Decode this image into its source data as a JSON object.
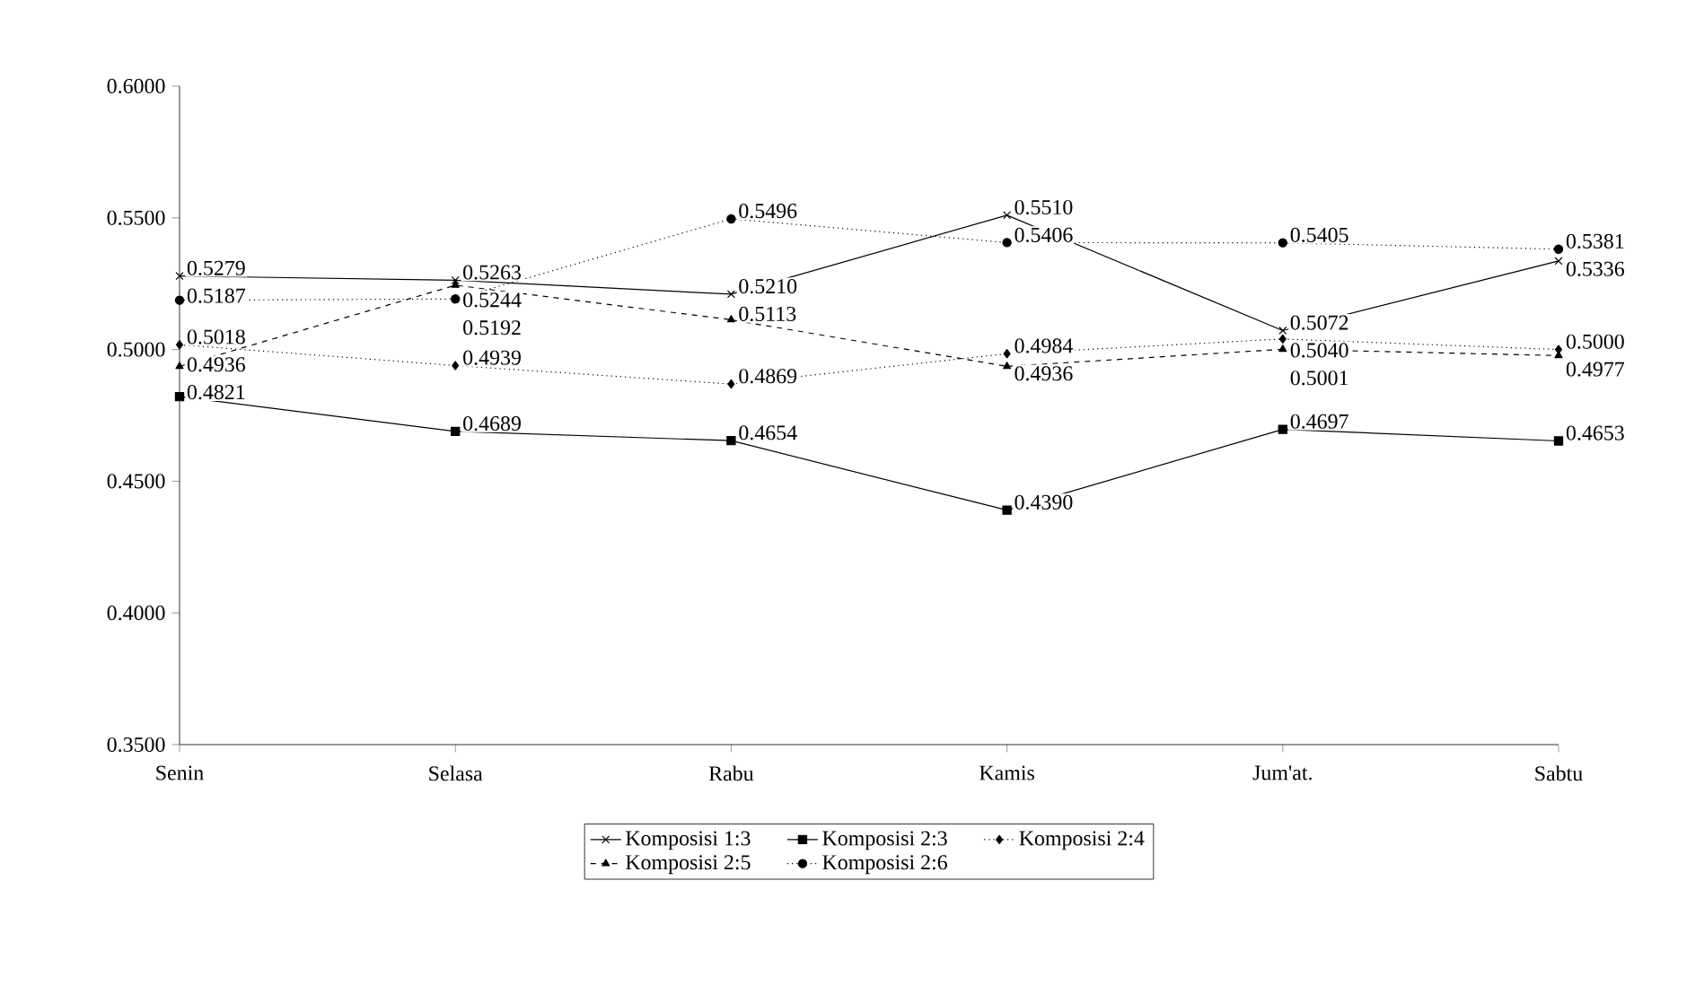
{
  "chart_data": {
    "type": "line",
    "categories": [
      "Senin",
      "Selasa",
      "Rabu",
      "Kamis",
      "Jum'at.",
      "Sabtu"
    ],
    "ylim": [
      0.35,
      0.6
    ],
    "yticks": [
      {
        "value": 0.35,
        "label": "0.3500"
      },
      {
        "value": 0.4,
        "label": "0.4000"
      },
      {
        "value": 0.45,
        "label": "0.4500"
      },
      {
        "value": 0.5,
        "label": "0.5000"
      },
      {
        "value": 0.55,
        "label": "0.5500"
      },
      {
        "value": 0.6,
        "label": "0.6000"
      }
    ],
    "grid": false,
    "legend": "bottom",
    "series": [
      {
        "name": "Komposisi 1:3",
        "color": "#000000",
        "marker": "cross",
        "line_style": "solid",
        "values": [
          0.5279,
          0.5263,
          0.521,
          0.551,
          0.5072,
          0.5336
        ],
        "value_labels": [
          "0.5279",
          "0.5263",
          "0.5210",
          "0.5510",
          "0.5072",
          "0.5336"
        ]
      },
      {
        "name": "Komposisi 2:3",
        "color": "#000000",
        "marker": "square",
        "line_style": "solid",
        "values": [
          0.4821,
          0.4689,
          0.4654,
          0.439,
          0.4697,
          0.4653
        ],
        "value_labels": [
          "0.4821",
          "0.4689",
          "0.4654",
          "0.4390",
          "0.4697",
          "0.4653"
        ]
      },
      {
        "name": "Komposisi 2:4",
        "color": "#000000",
        "marker": "diamond",
        "line_style": "dotted",
        "values": [
          0.5018,
          0.4939,
          0.4869,
          0.4984,
          0.504,
          0.5
        ],
        "value_labels": [
          "0.5018",
          "0.4939",
          "0.4869",
          "0.4984",
          "0.5040",
          "0.5000"
        ]
      },
      {
        "name": "Komposisi 2:5",
        "color": "#000000",
        "marker": "triangle",
        "line_style": "dashed",
        "values": [
          0.4936,
          0.5244,
          0.5113,
          0.4936,
          0.5001,
          0.4977
        ],
        "value_labels": [
          "0.4936",
          "0.5244",
          "0.5113",
          "0.4936",
          "0.5001",
          "0.4977"
        ]
      },
      {
        "name": "Komposisi 2:6",
        "color": "#000000",
        "marker": "circle",
        "line_style": "dotted",
        "values": [
          0.5187,
          0.5192,
          0.5496,
          0.5406,
          0.5405,
          0.5381
        ],
        "value_labels": [
          "0.5187",
          "0.5192",
          "0.5496",
          "0.5406",
          "0.5405",
          "0.5381"
        ]
      }
    ]
  }
}
